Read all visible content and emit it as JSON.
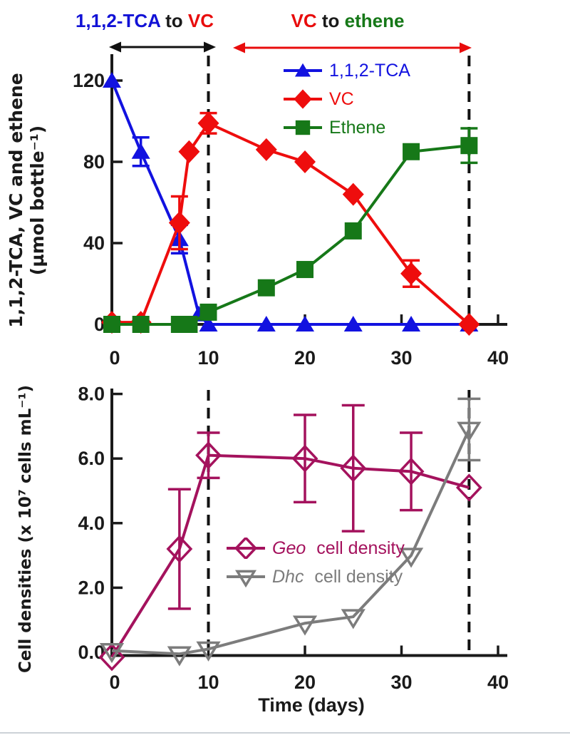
{
  "page": {
    "background": "#ffffff",
    "ink": "#1a1a1a"
  },
  "header": {
    "phase1": {
      "segments": [
        {
          "text": "1,1,2-TCA",
          "color": "#1212D6"
        },
        {
          "text": " to ",
          "color": "#1a1a1a"
        },
        {
          "text": "VC",
          "color": "#E80C0C"
        }
      ],
      "arrow_color": "#111111"
    },
    "phase2": {
      "segments": [
        {
          "text": "VC",
          "color": "#E80C0C"
        },
        {
          "text": " to ",
          "color": "#1a1a1a"
        },
        {
          "text": "ethene",
          "color": "#167818"
        }
      ],
      "arrow_color": "#E80C0C"
    }
  },
  "chart_data": [
    {
      "id": "top",
      "type": "line",
      "ylabel_line1": "1,1,2-TCA, VC and ethene",
      "ylabel_line2": "(µmol bottle⁻¹)",
      "xlim": [
        0,
        40
      ],
      "ylim": [
        0,
        133
      ],
      "grid": false,
      "legend_position": "upper-center-inside",
      "xticks": [
        {
          "v": 0,
          "label": "0"
        },
        {
          "v": 10,
          "label": "10"
        },
        {
          "v": 20,
          "label": "20"
        },
        {
          "v": 30,
          "label": "30"
        },
        {
          "v": 40,
          "label": "40"
        }
      ],
      "yticks": [
        {
          "v": 0,
          "label": "0"
        },
        {
          "v": 40,
          "label": "40"
        },
        {
          "v": 80,
          "label": "80"
        },
        {
          "v": 120,
          "label": "120"
        }
      ],
      "phase_boundaries_x": [
        10,
        37
      ],
      "series": [
        {
          "name": "1,1,2-TCA",
          "color": "#1212E0",
          "marker": "triangle",
          "x": [
            0,
            3,
            7,
            9,
            10,
            16,
            20,
            25,
            31,
            37
          ],
          "y": [
            120,
            85,
            42,
            5,
            0,
            0,
            0,
            0,
            0,
            0
          ],
          "yerr": [
            0,
            7,
            7,
            0,
            0,
            0,
            0,
            0,
            0,
            0
          ]
        },
        {
          "name": "VC",
          "color": "#EE0D0D",
          "marker": "diamond",
          "x": [
            0,
            3,
            7,
            8,
            10,
            16,
            20,
            25,
            31,
            37
          ],
          "y": [
            1,
            1,
            50,
            85,
            99,
            86,
            80,
            64,
            25,
            0
          ],
          "yerr": [
            0,
            0,
            13,
            0,
            5,
            0,
            0,
            0,
            6.5,
            0
          ]
        },
        {
          "name": "Ethene",
          "color": "#167818",
          "marker": "square",
          "x": [
            0,
            3,
            7,
            8,
            10,
            16,
            20,
            25,
            31,
            37
          ],
          "y": [
            0,
            0,
            0,
            0,
            6,
            18,
            27,
            46,
            85,
            88
          ],
          "yerr": [
            0,
            0,
            0,
            0,
            0,
            0,
            0,
            0,
            0,
            8.5
          ]
        }
      ]
    },
    {
      "id": "bottom",
      "type": "line",
      "xlabel": "Time (days)",
      "ylabel": "Cell densities  (x 10⁷ cells mL⁻¹)",
      "xlim": [
        0,
        40
      ],
      "ylim": [
        -0.3,
        8.2
      ],
      "grid": false,
      "legend_position": "center-inside",
      "xticks": [
        {
          "v": 0,
          "label": "0"
        },
        {
          "v": 10,
          "label": "10"
        },
        {
          "v": 20,
          "label": "20"
        },
        {
          "v": 30,
          "label": "30"
        },
        {
          "v": 40,
          "label": "40"
        }
      ],
      "yticks": [
        {
          "v": 0,
          "label": "0.0"
        },
        {
          "v": 2,
          "label": "2.0"
        },
        {
          "v": 4,
          "label": "4.0"
        },
        {
          "v": 6,
          "label": "6.0"
        },
        {
          "v": 8,
          "label": "8.0"
        }
      ],
      "phase_boundaries_x": [
        10,
        37
      ],
      "series": [
        {
          "name": "Geo cell density",
          "name_italic": "Geo",
          "name_rest": " cell density",
          "color": "#A4125D",
          "marker": "diamond-open",
          "x": [
            0,
            7,
            10,
            20,
            25,
            31,
            37
          ],
          "y": [
            -0.15,
            3.2,
            6.1,
            6.0,
            5.7,
            5.6,
            5.1
          ],
          "yerr": [
            0,
            1.85,
            0.7,
            1.35,
            1.95,
            1.2,
            0
          ]
        },
        {
          "name": "Dhc cell density",
          "name_italic": "Dhc",
          "name_rest": " cell density",
          "color": "#7C7C7C",
          "marker": "triangle-down-open",
          "x": [
            0,
            7,
            10,
            20,
            25,
            31,
            37
          ],
          "y": [
            0.05,
            -0.05,
            0.1,
            0.9,
            1.1,
            3.0,
            6.9
          ],
          "yerr": [
            0,
            0,
            0,
            0,
            0,
            0,
            0.95
          ]
        }
      ]
    }
  ]
}
